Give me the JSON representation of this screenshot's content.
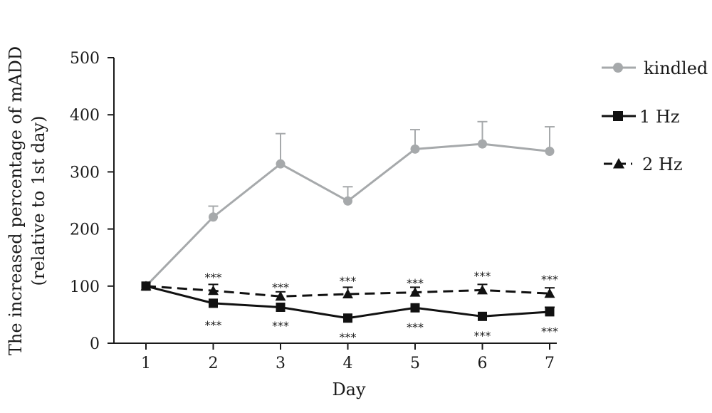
{
  "chart_data": {
    "type": "line",
    "xlabel": "Day",
    "ylabel_lines": [
      "The increased percentage of mADD",
      "(relative to 1st day)"
    ],
    "x": [
      1,
      2,
      3,
      4,
      5,
      6,
      7
    ],
    "xlim": [
      1,
      7
    ],
    "ylim": [
      0,
      500
    ],
    "y_ticks": [
      0,
      100,
      200,
      300,
      400,
      500
    ],
    "x_tick_labels": [
      "1",
      "2",
      "3",
      "4",
      "5",
      "6",
      "7"
    ],
    "y_tick_labels": [
      "0",
      "100",
      "200",
      "300",
      "400",
      "500"
    ],
    "legend_position": "right",
    "grid": false,
    "series": [
      {
        "name": "kindled",
        "values": [
          100,
          221,
          314,
          249,
          340,
          349,
          336
        ],
        "error": [
          0,
          19,
          53,
          25,
          34,
          39,
          43
        ],
        "color": "#a6a9ab",
        "marker": "circle",
        "line_style": "solid"
      },
      {
        "name": "1 Hz",
        "values": [
          100,
          70,
          63,
          44,
          62,
          47,
          55
        ],
        "error": [
          0,
          0,
          0,
          0,
          0,
          0,
          8
        ],
        "color": "#111111",
        "marker": "square",
        "line_style": "solid"
      },
      {
        "name": "2 Hz",
        "values": [
          100,
          92,
          82,
          86,
          89,
          93,
          87
        ],
        "error": [
          0,
          11,
          8,
          12,
          9,
          10,
          10
        ],
        "color": "#111111",
        "marker": "triangle",
        "line_style": "dashed"
      }
    ],
    "annotations": [
      {
        "x": 2,
        "text": "***",
        "position": "above"
      },
      {
        "x": 3,
        "text": "***",
        "position": "above"
      },
      {
        "x": 4,
        "text": "***",
        "position": "above"
      },
      {
        "x": 5,
        "text": "***",
        "position": "above"
      },
      {
        "x": 6,
        "text": "***",
        "position": "above"
      },
      {
        "x": 7,
        "text": "***",
        "position": "above"
      },
      {
        "x": 2,
        "text": "***",
        "position": "below"
      },
      {
        "x": 3,
        "text": "***",
        "position": "below"
      },
      {
        "x": 4,
        "text": "***",
        "position": "below"
      },
      {
        "x": 5,
        "text": "***",
        "position": "below"
      },
      {
        "x": 6,
        "text": "***",
        "position": "below"
      },
      {
        "x": 7,
        "text": "***",
        "position": "below"
      }
    ]
  }
}
